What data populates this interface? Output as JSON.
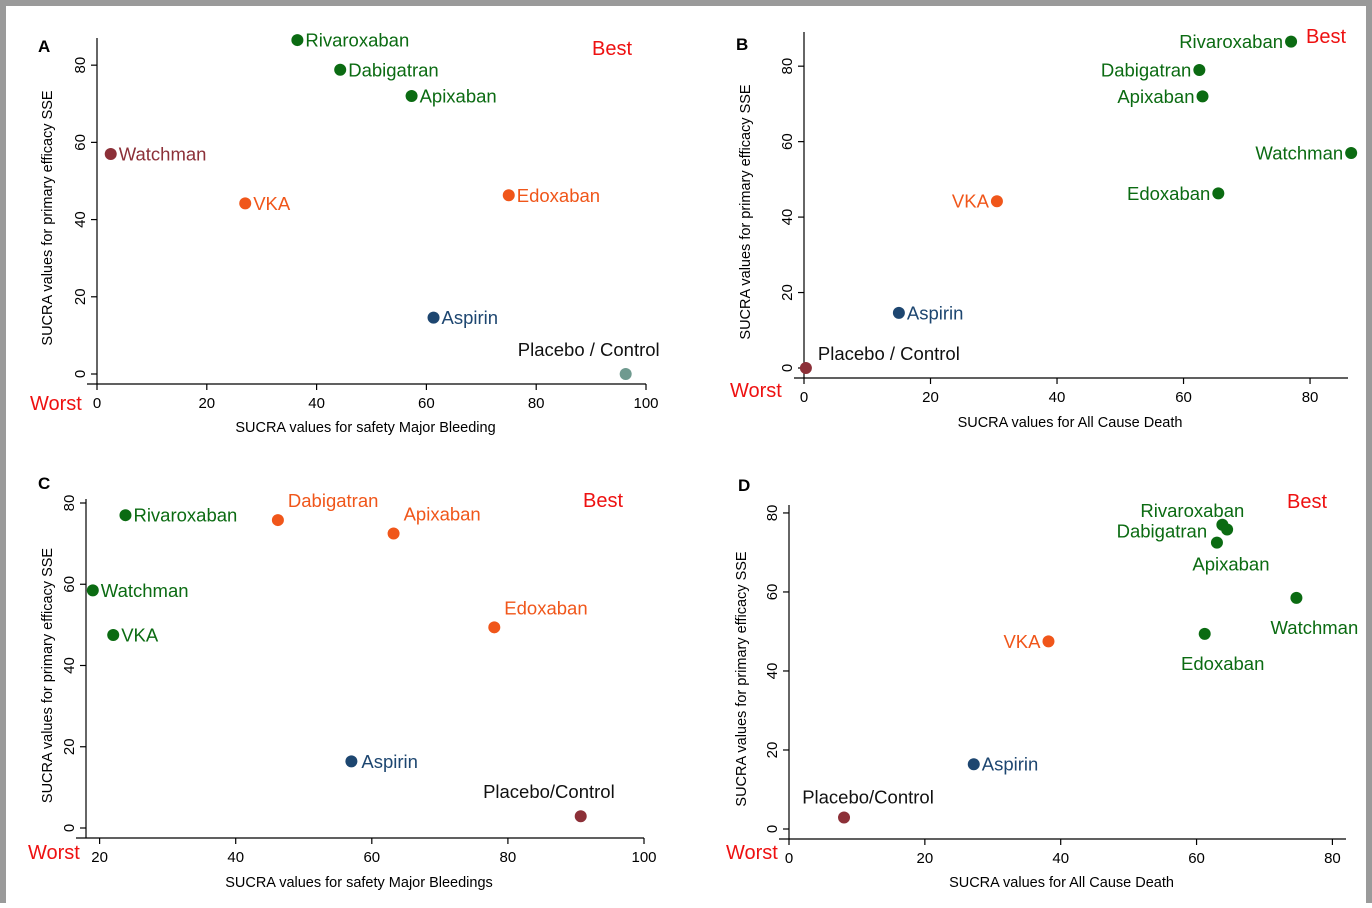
{
  "colors": {
    "green": "#0b6b12",
    "orange": "#f0561a",
    "maroon": "#8c3038",
    "navy": "#1d4670",
    "teal": "#6f9a8f",
    "black": "#111111",
    "red": "#ee1111"
  },
  "chart_data": [
    {
      "type": "scatter",
      "panel": "A",
      "best_label": "Best",
      "worst_label": "Worst",
      "xlabel": "SUCRA values for safety Major Bleeding",
      "ylabel": "SUCRA values for primary efficacy SSE",
      "xlim": [
        0,
        100
      ],
      "ylim": [
        0,
        86
      ],
      "xticks": [
        0,
        20,
        40,
        60,
        80,
        100
      ],
      "yticks": [
        0,
        20,
        40,
        60,
        80
      ],
      "points": [
        {
          "label": "Rivaroxaban",
          "x": 36.5,
          "y": 86.5,
          "color": "green",
          "pos": "right"
        },
        {
          "label": "Dabigatran",
          "x": 44.3,
          "y": 78.8,
          "color": "green",
          "pos": "right"
        },
        {
          "label": "Apixaban",
          "x": 57.3,
          "y": 72.0,
          "color": "green",
          "pos": "right"
        },
        {
          "label": "Watchman",
          "x": 2.5,
          "y": 57.0,
          "color": "maroon",
          "pos": "right"
        },
        {
          "label": "VKA",
          "x": 27.0,
          "y": 44.2,
          "color": "orange",
          "pos": "right"
        },
        {
          "label": "Edoxaban",
          "x": 75.0,
          "y": 46.3,
          "color": "orange",
          "pos": "right"
        },
        {
          "label": "Aspirin",
          "x": 61.3,
          "y": 14.6,
          "color": "navy",
          "pos": "right"
        },
        {
          "label": "Placebo / Control",
          "x": 96.3,
          "y": 0.0,
          "color": "teal",
          "pos": "above-left",
          "label_color": "black"
        }
      ]
    },
    {
      "type": "scatter",
      "panel": "B",
      "best_label": "Best",
      "worst_label": "Worst",
      "xlabel": "SUCRA values for All Cause Death",
      "ylabel": "SUCRA values for primary efficacy SSE",
      "xlim": [
        0,
        86
      ],
      "ylim": [
        0,
        88
      ],
      "xticks": [
        0,
        20,
        40,
        60,
        80
      ],
      "yticks": [
        0,
        20,
        40,
        60,
        80
      ],
      "points": [
        {
          "label": "Rivaroxaban",
          "x": 77.0,
          "y": 86.5,
          "color": "green",
          "pos": "left"
        },
        {
          "label": "Dabigatran",
          "x": 62.5,
          "y": 79.0,
          "color": "green",
          "pos": "left"
        },
        {
          "label": "Apixaban",
          "x": 63.0,
          "y": 72.0,
          "color": "green",
          "pos": "left"
        },
        {
          "label": "Watchman",
          "x": 86.5,
          "y": 57.0,
          "color": "green",
          "pos": "left"
        },
        {
          "label": "Edoxaban",
          "x": 65.5,
          "y": 46.3,
          "color": "green",
          "pos": "left"
        },
        {
          "label": "VKA",
          "x": 30.5,
          "y": 44.2,
          "color": "orange",
          "pos": "left"
        },
        {
          "label": "Aspirin",
          "x": 15.0,
          "y": 14.6,
          "color": "navy",
          "pos": "right"
        },
        {
          "label": "Placebo / Control",
          "x": 0.3,
          "y": 0.0,
          "color": "maroon",
          "pos": "above-right",
          "label_color": "black"
        }
      ]
    },
    {
      "type": "scatter",
      "panel": "C",
      "best_label": "Best",
      "worst_label": "Worst",
      "xlabel": "SUCRA values for safety Major Bleedings",
      "ylabel": "SUCRA values for primary efficacy SSE",
      "xlim": [
        18,
        100
      ],
      "ylim": [
        0,
        80
      ],
      "xticks": [
        20,
        40,
        60,
        80,
        100
      ],
      "yticks": [
        0,
        20,
        40,
        60,
        80
      ],
      "points": [
        {
          "label": "Rivaroxaban",
          "x": 23.8,
          "y": 77.0,
          "color": "green",
          "pos": "right"
        },
        {
          "label": "Dabigatran",
          "x": 46.2,
          "y": 75.8,
          "color": "orange",
          "pos": "above-right"
        },
        {
          "label": "Apixaban",
          "x": 63.2,
          "y": 72.5,
          "color": "orange",
          "pos": "above-right"
        },
        {
          "label": "Watchman",
          "x": 19.0,
          "y": 58.5,
          "color": "green",
          "pos": "right"
        },
        {
          "label": "VKA",
          "x": 22.0,
          "y": 47.5,
          "color": "green",
          "pos": "right"
        },
        {
          "label": "Edoxaban",
          "x": 78.0,
          "y": 49.4,
          "color": "orange",
          "pos": "above-right"
        },
        {
          "label": "Aspirin",
          "x": 57.0,
          "y": 16.4,
          "color": "navy",
          "pos": "right-gap"
        },
        {
          "label": "Placebo/Control",
          "x": 90.7,
          "y": 2.9,
          "color": "maroon",
          "pos": "above-left",
          "label_color": "black"
        }
      ]
    },
    {
      "type": "scatter",
      "panel": "D",
      "best_label": "Best",
      "worst_label": "Worst",
      "xlabel": "SUCRA values for All Cause Death",
      "ylabel": "SUCRA values for primary efficacy SSE",
      "xlim": [
        0,
        82
      ],
      "ylim": [
        0,
        81
      ],
      "xticks": [
        0,
        20,
        40,
        60,
        80
      ],
      "yticks": [
        0,
        20,
        40,
        60,
        80
      ],
      "points": [
        {
          "label": "Rivaroxaban",
          "x": 63.8,
          "y": 77.0,
          "color": "green",
          "pos": "label-d-riv"
        },
        {
          "label": "Dabigatran",
          "x": 64.5,
          "y": 75.8,
          "color": "green",
          "pos": "label-d-dab"
        },
        {
          "label": "Apixaban",
          "x": 63.0,
          "y": 72.5,
          "color": "green",
          "pos": "below-right"
        },
        {
          "label": "Watchman",
          "x": 74.7,
          "y": 58.5,
          "color": "green",
          "pos": "below"
        },
        {
          "label": "Edoxaban",
          "x": 61.2,
          "y": 49.4,
          "color": "green",
          "pos": "below"
        },
        {
          "label": "VKA",
          "x": 38.2,
          "y": 47.5,
          "color": "orange",
          "pos": "left"
        },
        {
          "label": "Aspirin",
          "x": 27.2,
          "y": 16.4,
          "color": "navy",
          "pos": "right"
        },
        {
          "label": "Placebo/Control",
          "x": 8.1,
          "y": 2.9,
          "color": "maroon",
          "pos": "above",
          "label_color": "black"
        }
      ]
    }
  ]
}
